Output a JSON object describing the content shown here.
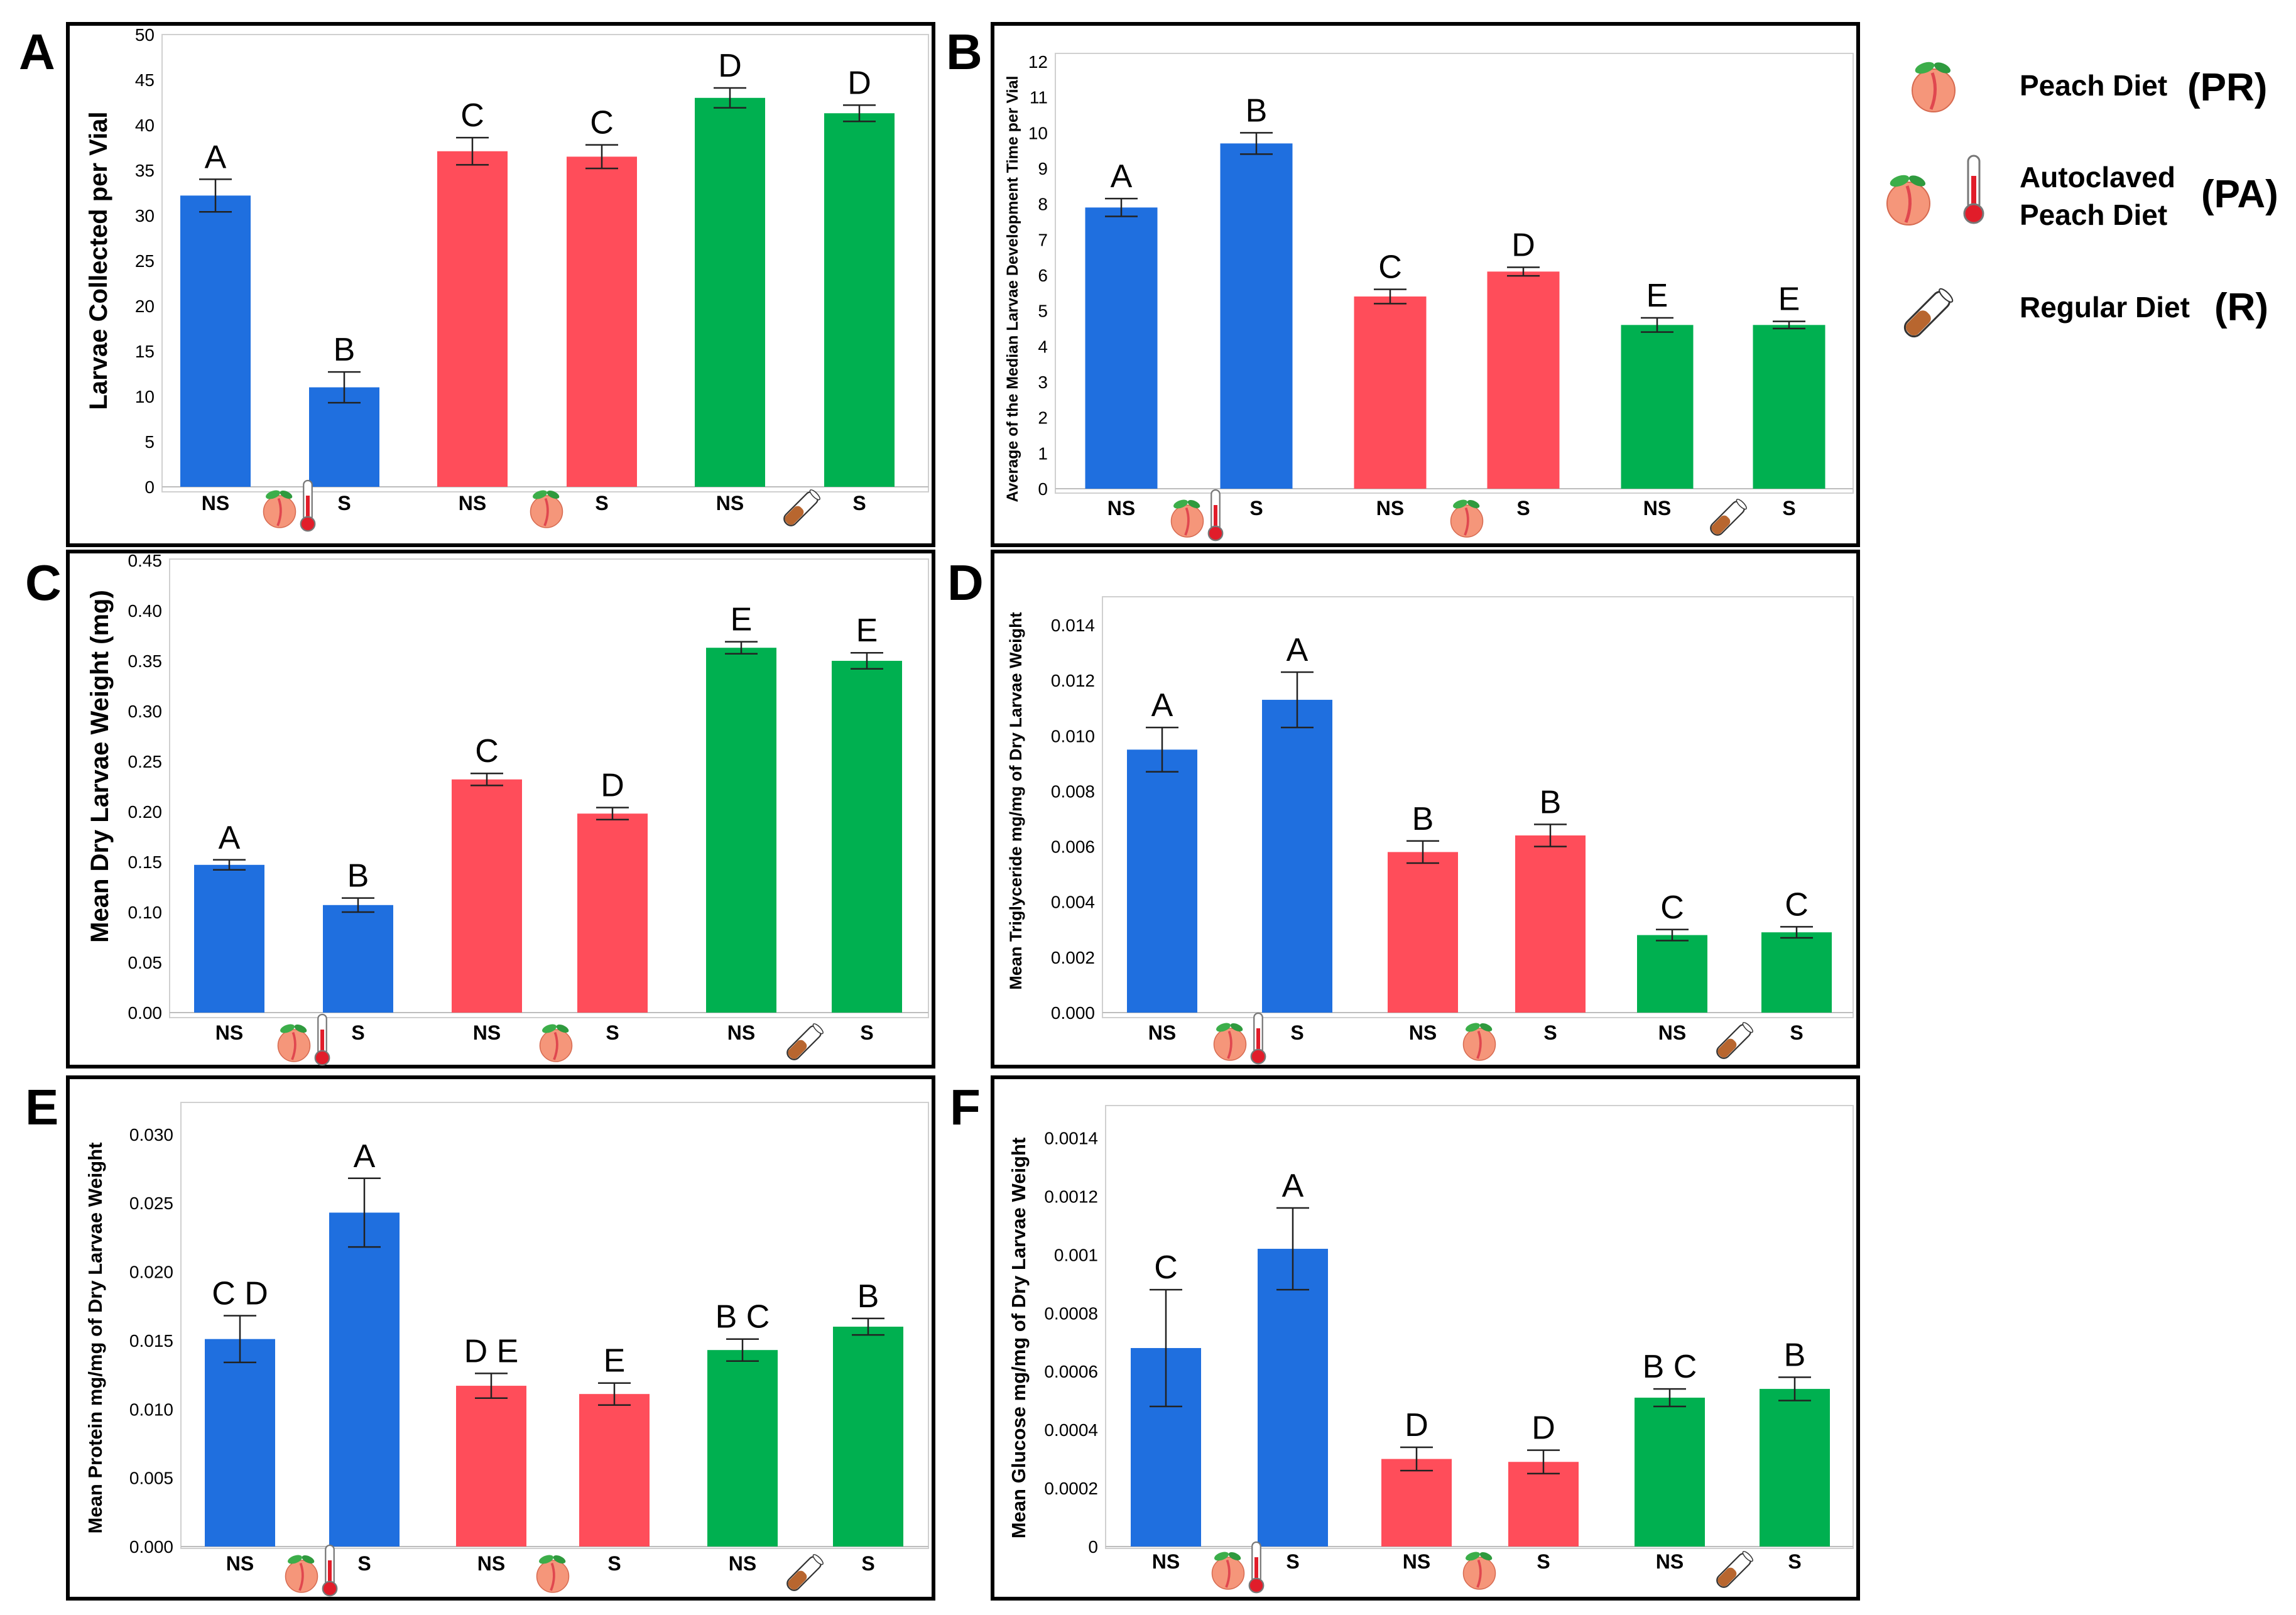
{
  "legend": {
    "items": [
      {
        "lines": [
          "Peach Diet"
        ],
        "code": "(PR)",
        "icon": "peach"
      },
      {
        "lines": [
          "Autoclaved",
          "Peach Diet"
        ],
        "code": "(PA)",
        "icon": "autoclaved-peach"
      },
      {
        "lines": [
          "Regular Diet"
        ],
        "code": "(R)",
        "icon": "vial"
      }
    ]
  },
  "colors": {
    "PA": "#1f6fdf",
    "PR": "#ff4d5a",
    "R": "#00b050",
    "frame": "#000000",
    "grid": "#d0d0d0"
  },
  "chart_data": [
    {
      "id": "A",
      "type": "bar",
      "panel_letter": "A",
      "ylabel": "Larvae Collected per Vial",
      "ylim": [
        0,
        50
      ],
      "yticks": [
        "0",
        "5",
        "10",
        "15",
        "20",
        "25",
        "30",
        "35",
        "40",
        "45",
        "50"
      ],
      "categories": [
        "NS",
        "S",
        "NS",
        "S",
        "NS",
        "S"
      ],
      "diet_groups": [
        "PA",
        "PA",
        "PR",
        "PR",
        "R",
        "R"
      ],
      "values": [
        32.2,
        11.0,
        37.1,
        36.5,
        43.0,
        41.3
      ],
      "errors": [
        1.8,
        1.7,
        1.5,
        1.3,
        1.1,
        0.9
      ],
      "significance": [
        "A",
        "B",
        "C",
        "C",
        "D",
        "D"
      ]
    },
    {
      "id": "B",
      "type": "bar",
      "panel_letter": "B",
      "ylabel": "Average of the Median Larvae Development Time per Vial",
      "ylim": [
        0,
        12
      ],
      "yticks": [
        "0",
        "1",
        "2",
        "3",
        "4",
        "5",
        "6",
        "7",
        "8",
        "9",
        "10",
        "11",
        "12"
      ],
      "categories": [
        "NS",
        "S",
        "NS",
        "S",
        "NS",
        "S"
      ],
      "diet_groups": [
        "PA",
        "PA",
        "PR",
        "PR",
        "R",
        "R"
      ],
      "values": [
        7.9,
        9.7,
        5.4,
        6.1,
        4.6,
        4.6
      ],
      "errors": [
        0.25,
        0.3,
        0.2,
        0.12,
        0.2,
        0.1
      ],
      "significance": [
        "A",
        "B",
        "C",
        "D",
        "E",
        "E"
      ]
    },
    {
      "id": "C",
      "type": "bar",
      "panel_letter": "C",
      "ylabel": "Mean Dry Larvae Weight (mg)",
      "ylim": [
        0,
        0.45
      ],
      "yticks": [
        "0.00",
        "0.05",
        "0.10",
        "0.15",
        "0.20",
        "0.25",
        "0.30",
        "0.35",
        "0.40",
        "0.45"
      ],
      "categories": [
        "NS",
        "S",
        "NS",
        "S",
        "NS",
        "S"
      ],
      "diet_groups": [
        "PA",
        "PA",
        "PR",
        "PR",
        "R",
        "R"
      ],
      "values": [
        0.147,
        0.107,
        0.232,
        0.198,
        0.363,
        0.35
      ],
      "errors": [
        0.005,
        0.007,
        0.006,
        0.006,
        0.006,
        0.008
      ],
      "significance": [
        "A",
        "B",
        "C",
        "D",
        "E",
        "E"
      ]
    },
    {
      "id": "D",
      "type": "bar",
      "panel_letter": "D",
      "ylabel": "Mean Triglyceride mg/mg of Dry Larvae Weight",
      "ylim": [
        0,
        0.015
      ],
      "yticks": [
        "0.000",
        "0.002",
        "0.004",
        "0.006",
        "0.008",
        "0.010",
        "0.012",
        "0.014"
      ],
      "categories": [
        "NS",
        "S",
        "NS",
        "S",
        "NS",
        "S"
      ],
      "diet_groups": [
        "PA",
        "PA",
        "PR",
        "PR",
        "R",
        "R"
      ],
      "values": [
        0.0095,
        0.0113,
        0.0058,
        0.0064,
        0.0028,
        0.0029
      ],
      "errors": [
        0.0008,
        0.001,
        0.0004,
        0.0004,
        0.0002,
        0.0002
      ],
      "significance": [
        "A",
        "A",
        "B",
        "B",
        "C",
        "C"
      ]
    },
    {
      "id": "E",
      "type": "bar",
      "panel_letter": "E",
      "ylabel": "Mean Protein mg/mg of Dry Larvae Weight",
      "ylim": [
        0,
        0.032
      ],
      "yticks": [
        "0.000",
        "0.005",
        "0.010",
        "0.015",
        "0.020",
        "0.025",
        "0.030"
      ],
      "categories": [
        "NS",
        "S",
        "NS",
        "S",
        "NS",
        "S"
      ],
      "diet_groups": [
        "PA",
        "PA",
        "PR",
        "PR",
        "R",
        "R"
      ],
      "values": [
        0.0151,
        0.0243,
        0.0117,
        0.0111,
        0.0143,
        0.016
      ],
      "errors": [
        0.0017,
        0.0025,
        0.0009,
        0.0008,
        0.0008,
        0.0006
      ],
      "significance": [
        "C D",
        "A",
        "D E",
        "E",
        "B C",
        "B"
      ]
    },
    {
      "id": "F",
      "type": "bar",
      "panel_letter": "F",
      "ylabel": "Mean Glucose mg/mg of Dry Larvae Weight",
      "ylim": [
        0,
        0.0015
      ],
      "yticks": [
        "0",
        "0.0002",
        "0.0004",
        "0.0006",
        "0.0008",
        "0.001",
        "0.0012",
        "0.0014"
      ],
      "categories": [
        "NS",
        "S",
        "NS",
        "S",
        "NS",
        "S"
      ],
      "diet_groups": [
        "PA",
        "PA",
        "PR",
        "PR",
        "R",
        "R"
      ],
      "values": [
        0.00068,
        0.00102,
        0.0003,
        0.00029,
        0.00051,
        0.00054
      ],
      "errors": [
        0.0002,
        0.00014,
        4e-05,
        4e-05,
        3e-05,
        4e-05
      ],
      "significance": [
        "C",
        "A",
        "D",
        "D",
        "B C",
        "B"
      ]
    }
  ]
}
